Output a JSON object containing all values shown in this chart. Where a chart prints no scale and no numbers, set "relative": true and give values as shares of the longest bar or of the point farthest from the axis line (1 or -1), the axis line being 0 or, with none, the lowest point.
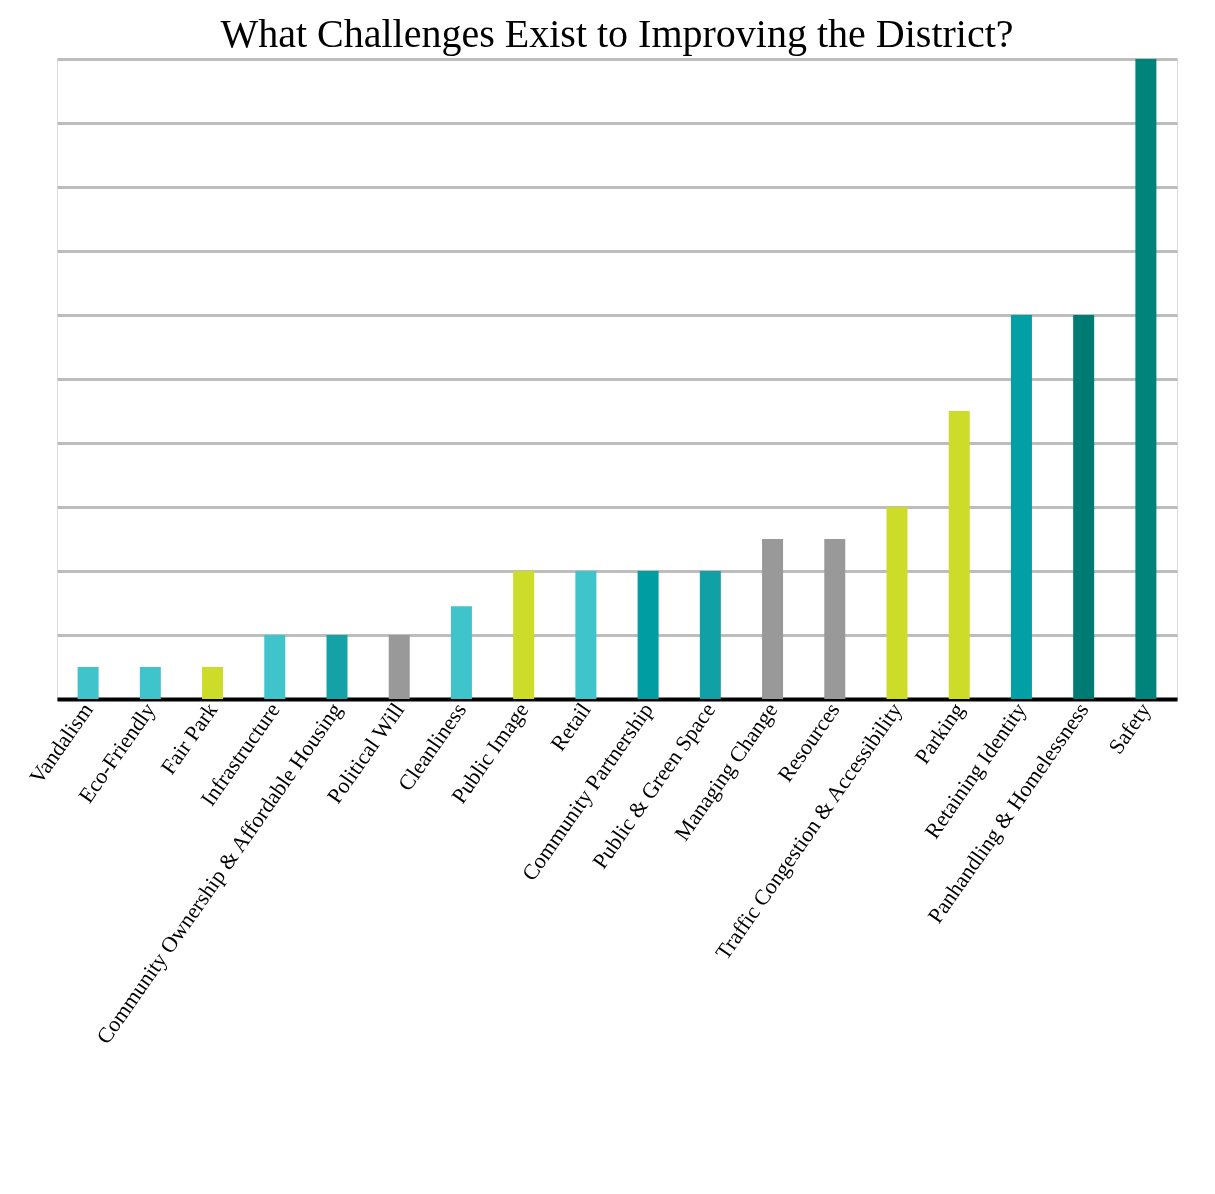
{
  "chart_data": {
    "type": "bar",
    "title": "What Challenges Exist to Improving the District?",
    "categories": [
      "Vandalism",
      "Eco-Friendly",
      "Fair Park",
      "Infrastructure",
      "Community Ownership & Affordable Housing",
      "Political Will",
      "Cleanliness",
      "Public Image",
      "Retail",
      "Community Partnership",
      "Public & Green Space",
      "Managing Change",
      "Resources",
      "Traffic Congestion & Accessibility",
      "Parking",
      "Retaining Identity",
      "Panhandling & Homelessness",
      "Safety"
    ],
    "values": [
      0.05,
      0.05,
      0.05,
      0.1,
      0.1,
      0.1,
      0.145,
      0.2,
      0.2,
      0.2,
      0.2,
      0.25,
      0.25,
      0.3,
      0.45,
      0.6,
      0.6,
      1
    ],
    "colors": [
      "#40c4cc",
      "#40c4cc",
      "#cddc29",
      "#40c4cc",
      "#14a2a6",
      "#999999",
      "#40c4cc",
      "#cddc29",
      "#40c4cc",
      "#009ea3",
      "#10a0a5",
      "#999999",
      "#999999",
      "#cddc29",
      "#cddc29",
      "#00a0a6",
      "#007b73",
      "#00837a"
    ],
    "relative": true,
    "grid": "y"
  }
}
